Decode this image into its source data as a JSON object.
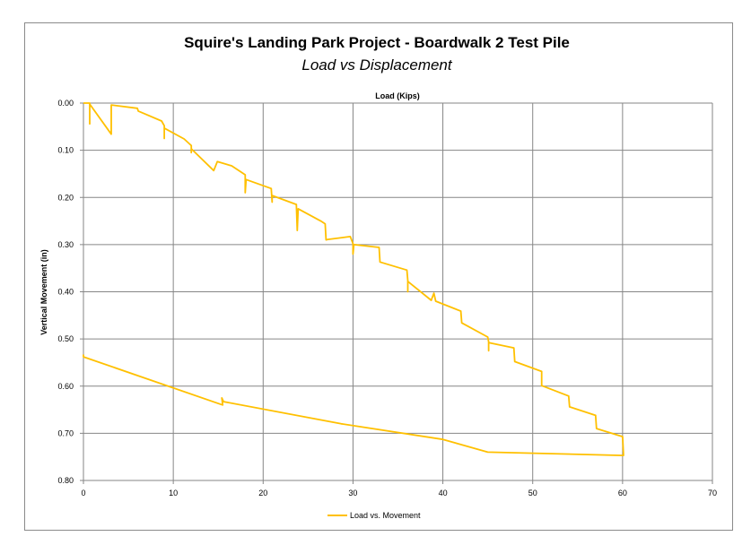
{
  "chart_data": {
    "type": "line",
    "title": "Squire's Landing Park Project - Boardwalk 2 Test Pile",
    "subtitle": "Load vs Displacement",
    "xlabel": "Load (Kips)",
    "ylabel": "Vertical Movement (in)",
    "xlim": [
      0,
      70
    ],
    "ylim": [
      0.8,
      0.0
    ],
    "x_ticks": [
      "0",
      "10",
      "20",
      "30",
      "40",
      "50",
      "60",
      "70"
    ],
    "y_ticks": [
      "0.00",
      "0.10",
      "0.20",
      "0.30",
      "0.40",
      "0.50",
      "0.60",
      "0.70",
      "0.80"
    ],
    "grid": true,
    "legend_position": "bottom",
    "series": [
      {
        "name": "Load vs. Movement",
        "color": "#FFC000",
        "points": [
          [
            0,
            0
          ],
          [
            0.7,
            0
          ],
          [
            0.7,
            0.044
          ],
          [
            0.7,
            0.002
          ],
          [
            3.1,
            0.066
          ],
          [
            3.1,
            0.004
          ],
          [
            6.0,
            0.011
          ],
          [
            6.1,
            0.017
          ],
          [
            8.7,
            0.038
          ],
          [
            9.0,
            0.048
          ],
          [
            9.0,
            0.075
          ],
          [
            9.0,
            0.053
          ],
          [
            11.2,
            0.076
          ],
          [
            12.0,
            0.09
          ],
          [
            12.0,
            0.105
          ],
          [
            12.0,
            0.097
          ],
          [
            14.5,
            0.143
          ],
          [
            14.9,
            0.124
          ],
          [
            16.5,
            0.133
          ],
          [
            18.0,
            0.152
          ],
          [
            18.0,
            0.19
          ],
          [
            18.1,
            0.162
          ],
          [
            20.9,
            0.181
          ],
          [
            21.0,
            0.21
          ],
          [
            21.0,
            0.196
          ],
          [
            23.7,
            0.215
          ],
          [
            23.8,
            0.27
          ],
          [
            23.9,
            0.224
          ],
          [
            26.5,
            0.251
          ],
          [
            26.9,
            0.256
          ],
          [
            27.0,
            0.29
          ],
          [
            27.2,
            0.289
          ],
          [
            29.7,
            0.283
          ],
          [
            30.0,
            0.298
          ],
          [
            30.0,
            0.32
          ],
          [
            30.1,
            0.3
          ],
          [
            32.9,
            0.306
          ],
          [
            33.0,
            0.337
          ],
          [
            36.0,
            0.354
          ],
          [
            36.1,
            0.376
          ],
          [
            36.1,
            0.4
          ],
          [
            36.1,
            0.378
          ],
          [
            38.7,
            0.418
          ],
          [
            39.0,
            0.403
          ],
          [
            39.2,
            0.42
          ],
          [
            42.0,
            0.441
          ],
          [
            42.1,
            0.466
          ],
          [
            45.0,
            0.496
          ],
          [
            45.1,
            0.506
          ],
          [
            45.1,
            0.525
          ],
          [
            45.1,
            0.508
          ],
          [
            47.9,
            0.519
          ],
          [
            48.0,
            0.548
          ],
          [
            51.0,
            0.569
          ],
          [
            51.0,
            0.599
          ],
          [
            54.0,
            0.621
          ],
          [
            54.1,
            0.644
          ],
          [
            57.0,
            0.662
          ],
          [
            57.1,
            0.69
          ],
          [
            60.0,
            0.707
          ],
          [
            60.1,
            0.747
          ],
          [
            45.0,
            0.74
          ],
          [
            40.0,
            0.713
          ],
          [
            28.7,
            0.68
          ],
          [
            15.6,
            0.633
          ],
          [
            15.4,
            0.625
          ],
          [
            15.5,
            0.64
          ],
          [
            0,
            0.538
          ],
          [
            0,
            0.533
          ]
        ]
      }
    ]
  }
}
